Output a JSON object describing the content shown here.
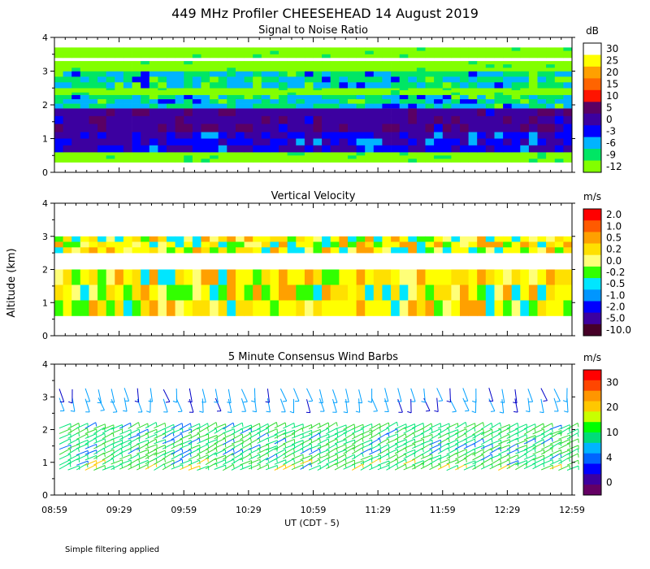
{
  "figure": {
    "title": "449 MHz Profiler CHEESEHEAD 14 August 2019",
    "ylabel": "Altitude (km)",
    "xlabel": "UT  (CDT - 5)",
    "footnote": "Simple filtering applied"
  },
  "chart_data": [
    {
      "type": "heatmap",
      "title": "Signal to Noise Ratio",
      "ylabel": "Altitude (km)",
      "ylim": [
        0,
        4
      ],
      "yticks": [
        "0",
        "1",
        "2",
        "3",
        "4"
      ],
      "x": [
        "08:59",
        "09:29",
        "09:59",
        "10:29",
        "10:59",
        "11:29",
        "11:59",
        "12:29",
        "12:59"
      ],
      "colorbar": {
        "unit": "dB",
        "labels": [
          "30",
          "25",
          "20",
          "15",
          "10",
          "5",
          "0",
          "-3",
          "-6",
          "-9",
          "-12"
        ],
        "colors": [
          "#ffffff",
          "#ffff00",
          "#ffa000",
          "#ff6400",
          "#ff1400",
          "#5a0064",
          "#3c00a0",
          "#0000ff",
          "#00b4ff",
          "#00e664",
          "#82ff00"
        ]
      },
      "layers": [
        {
          "alt": [
            0.3,
            0.6
          ],
          "value": -12
        },
        {
          "alt": [
            0.6,
            1.2
          ],
          "value": 0
        },
        {
          "alt": [
            1.2,
            1.9
          ],
          "value": 3
        },
        {
          "alt": [
            1.9,
            2.3
          ],
          "value": -6
        },
        {
          "alt": [
            2.3,
            2.5
          ],
          "value": -12
        },
        {
          "alt": [
            2.5,
            3.0
          ],
          "value": -6
        },
        {
          "alt": [
            3.0,
            3.3
          ],
          "value": -12
        },
        {
          "alt": [
            3.4,
            3.7
          ],
          "value": -12
        }
      ]
    },
    {
      "type": "heatmap",
      "title": "Vertical Velocity",
      "ylabel": "Altitude (km)",
      "ylim": [
        0,
        4
      ],
      "yticks": [
        "0",
        "1",
        "2",
        "3",
        "4"
      ],
      "x": [
        "08:59",
        "09:29",
        "09:59",
        "10:29",
        "10:59",
        "11:29",
        "11:59",
        "12:29",
        "12:59"
      ],
      "colorbar": {
        "unit": "m/s",
        "labels": [
          "2.0",
          "1.0",
          "0.5",
          "0.2",
          "0.0",
          "-0.2",
          "-0.5",
          "-1.0",
          "-2.0",
          "-5.0",
          "-10.0"
        ],
        "colors": [
          "#ff0000",
          "#ff5a00",
          "#ffa000",
          "#ffe000",
          "#ffff78",
          "#32ff00",
          "#00e6ff",
          "#0096ff",
          "#0000ff",
          "#3c00a0",
          "#460028"
        ]
      },
      "layers": [
        {
          "alt": [
            0.6,
            2.0
          ],
          "value": 0.0
        },
        {
          "alt": [
            2.5,
            3.0
          ],
          "value": 0.0
        }
      ]
    },
    {
      "type": "wind_barbs",
      "title": "5 Minute Consensus Wind Barbs",
      "ylabel": "Altitude (km)",
      "ylim": [
        0,
        4
      ],
      "yticks": [
        "0",
        "1",
        "2",
        "3",
        "4"
      ],
      "x": [
        "08:59",
        "09:29",
        "09:59",
        "10:29",
        "10:59",
        "11:29",
        "11:59",
        "12:29",
        "12:59"
      ],
      "colorbar": {
        "unit": "m/s",
        "labels": [
          "30",
          "20",
          "10",
          "4",
          "0"
        ],
        "colors": [
          "#ff0000",
          "#ff4600",
          "#ff9600",
          "#ffc800",
          "#c8ff00",
          "#00ff00",
          "#00dc78",
          "#00b4ff",
          "#0064ff",
          "#0000ff",
          "#3c00a0",
          "#640064"
        ]
      },
      "layers": [
        {
          "alt": [
            0.7,
            2.1
          ],
          "speed": 8
        },
        {
          "alt": [
            2.8,
            3.4
          ],
          "speed": 4
        }
      ]
    }
  ]
}
